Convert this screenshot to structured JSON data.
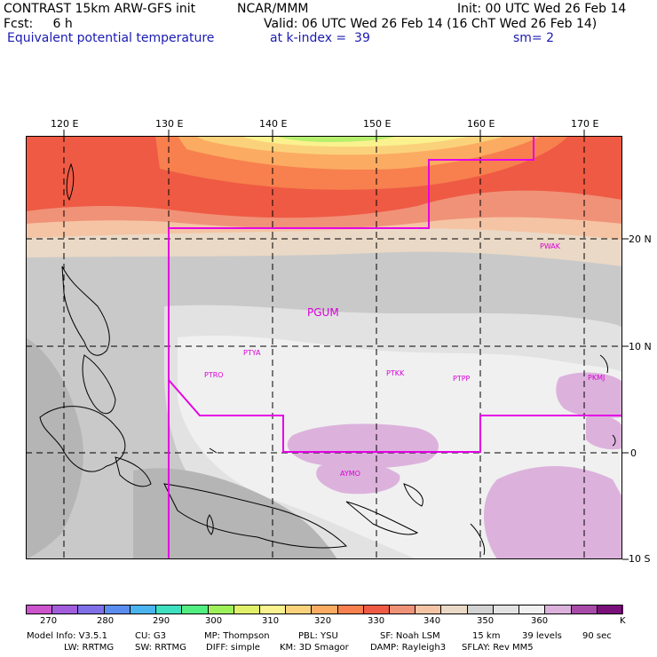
{
  "header": {
    "line1_left": "CONTRAST 15km ARW-GFS init",
    "line1_mid": "NCAR/MMM",
    "line1_right": "Init: 00 UTC Wed 26 Feb 14",
    "line2_left": "Fcst:     6 h",
    "line2_right": "Valid: 06 UTC Wed 26 Feb 14 (16 ChT Wed 26 Feb 14)",
    "line3_left": "Equivalent potential temperature",
    "line3_mid": "at k-index =  39",
    "line3_right": "sm= 2"
  },
  "axes": {
    "top_labels": [
      "120 E",
      "130 E",
      "140 E",
      "150 E",
      "160 E",
      "170 E"
    ],
    "right_labels": [
      "20 N",
      "10 N",
      "0",
      "10 S"
    ]
  },
  "stations": [
    "PGUM",
    "PTYA",
    "PTRO",
    "PTKK",
    "PTPP",
    "PKMJ",
    "PWAK",
    "AYMO"
  ],
  "colorbar": {
    "colors": [
      "#cc55cc",
      "#a25ddd",
      "#8070e8",
      "#5b8cf0",
      "#4ab4ee",
      "#3ee0c0",
      "#52ee82",
      "#9ef05a",
      "#e0f06a",
      "#faf28e",
      "#fbd27c",
      "#fbac62",
      "#f7804e",
      "#ef5a44",
      "#f09278",
      "#f5c4a4",
      "#ead9c6",
      "#d2d2d2",
      "#e2e2e2",
      "#f0f0f0",
      "#dcb2dc",
      "#a84aa8",
      "#7a107a"
    ],
    "tick_labels": [
      "270",
      "280",
      "290",
      "300",
      "310",
      "320",
      "330",
      "340",
      "350",
      "360",
      "K"
    ]
  },
  "footer": {
    "line1": [
      "Model Info: V3.5.1",
      "CU: G3",
      "MP: Thompson",
      "PBL: YSU",
      "SF: Noah LSM",
      "15 km",
      "39 levels",
      "90 sec"
    ],
    "line2": [
      "LW: RRTMG",
      "SW: RRTMG",
      "DIFF: simple",
      "KM: 3D Smagor",
      "DAMP: Rayleigh3",
      "SFLAY: Rev MM5"
    ]
  }
}
